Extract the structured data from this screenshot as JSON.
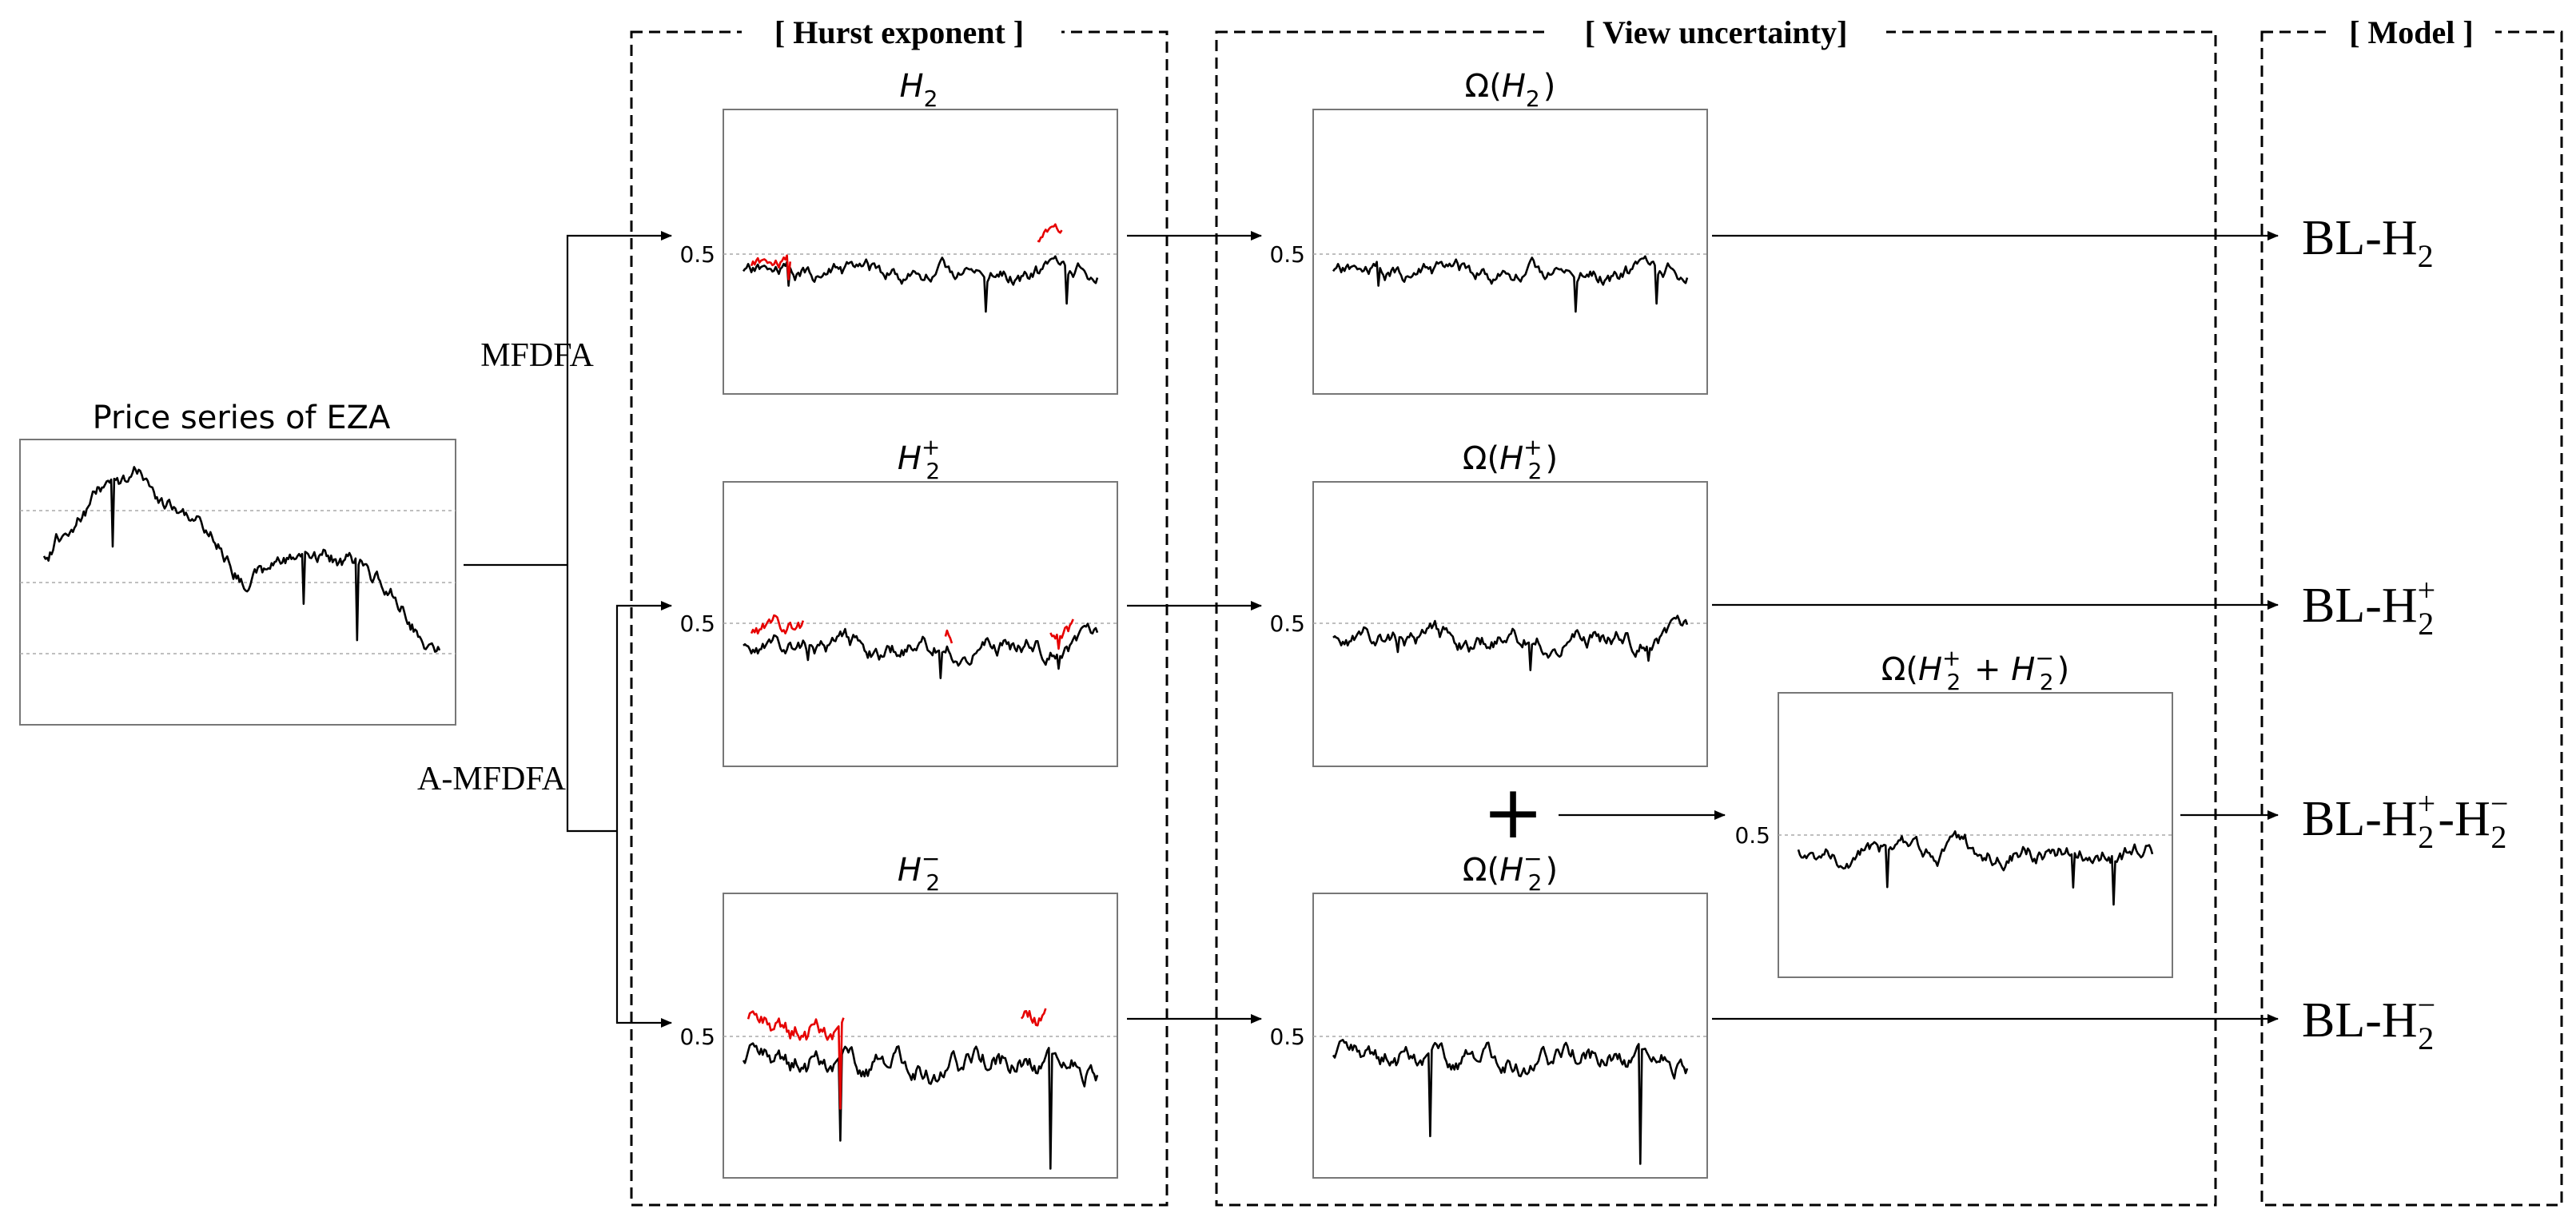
{
  "sections": {
    "hurst": "[ Hurst exponent ]",
    "uncertainty": "[ View uncertainty]",
    "model": "[ Model ]"
  },
  "price": {
    "title": "Price series of EZA"
  },
  "methods": {
    "mfdfa": "MFDFA",
    "amfdfa": "A-MFDFA"
  },
  "plus_symbol": "+",
  "hurst_plots": [
    {
      "id": "h2",
      "title_base": "H",
      "sub": "2",
      "sup": "",
      "ref_label": "0.5"
    },
    {
      "id": "h2p",
      "title_base": "H",
      "sub": "2",
      "sup": "+",
      "ref_label": "0.5"
    },
    {
      "id": "h2m",
      "title_base": "H",
      "sub": "2",
      "sup": "−",
      "ref_label": "0.5"
    }
  ],
  "omega_plots": [
    {
      "id": "oh2",
      "title_pre": "Ω(",
      "base": "H",
      "sub": "2",
      "sup": "",
      "title_post": ")",
      "ref_label": "0.5"
    },
    {
      "id": "oh2p",
      "title_pre": "Ω(",
      "base": "H",
      "sub": "2",
      "sup": "+",
      "title_post": ")",
      "ref_label": "0.5"
    },
    {
      "id": "oh2m",
      "title_pre": "Ω(",
      "base": "H",
      "sub": "2",
      "sup": "−",
      "title_post": ")",
      "ref_label": "0.5"
    },
    {
      "id": "ocomb",
      "title_pre": "Ω(",
      "base": "H",
      "sub": "2",
      "sup": "+",
      "mid": " + ",
      "base2": "H",
      "sub2": "2",
      "sup2": "−",
      "title_post": ")",
      "ref_label": "0.5"
    }
  ],
  "models": [
    {
      "pre": "BL-H",
      "sub": "2",
      "sup": ""
    },
    {
      "pre": "BL-H",
      "sub": "2",
      "sup": "+"
    },
    {
      "pre": "BL-H",
      "sub": "2",
      "sup": "+",
      "mid": "-H",
      "sub2": "2",
      "sup2": "−"
    },
    {
      "pre": "BL-H",
      "sub": "2",
      "sup": "−"
    }
  ],
  "colors": {
    "series": "#000000",
    "highlight": "#e60000",
    "frame": "#000000"
  }
}
